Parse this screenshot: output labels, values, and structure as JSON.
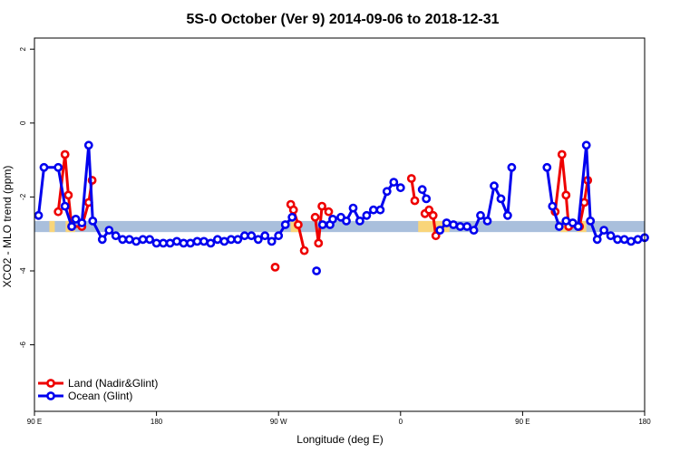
{
  "chart_data": {
    "type": "line",
    "title": "5S-0 October (Ver 9)   2014-09-06 to 2018-12-31",
    "xlabel": "Longitude (deg E)",
    "ylabel": "XCO2 - MLO trend (ppm)",
    "xlim": [
      90,
      540
    ],
    "ylim": [
      -7.8,
      2.3
    ],
    "x_ticks": [
      {
        "value": 90,
        "label": "90 E"
      },
      {
        "value": 180,
        "label": "180"
      },
      {
        "value": 270,
        "label": "90 W"
      },
      {
        "value": 360,
        "label": "0"
      },
      {
        "value": 450,
        "label": "90 E"
      },
      {
        "value": 540,
        "label": "180"
      }
    ],
    "y_ticks": [
      {
        "value": 2,
        "label": "2"
      },
      {
        "value": 0,
        "label": "0"
      },
      {
        "value": -2,
        "label": "-2"
      },
      {
        "value": -4,
        "label": "-4"
      },
      {
        "value": -6,
        "label": "-6"
      }
    ],
    "grid": false,
    "legend_position": "bottom-left",
    "band": {
      "y_low": -2.95,
      "y_high": -2.65,
      "base_color": "#a9bfdc",
      "land_color": "#f9d57a",
      "land_segments": [
        [
          101,
          105
        ],
        [
          113,
          120
        ],
        [
          279,
          286
        ],
        [
          373,
          396
        ],
        [
          478,
          483
        ],
        [
          490,
          497
        ]
      ]
    },
    "series": [
      {
        "name": "Land (Nadir&Glint)",
        "color": "#ee0000",
        "segments": [
          [
            [
              107.5,
              -2.4
            ],
            [
              112.5,
              -0.85
            ],
            [
              115,
              -1.95
            ],
            [
              117.5,
              -2.8
            ],
            [
              125,
              -2.8
            ],
            [
              130,
              -2.15
            ],
            [
              132.5,
              -1.55
            ]
          ],
          [
            [
              267.5,
              -3.9
            ]
          ],
          [
            [
              279,
              -2.2
            ],
            [
              281,
              -2.35
            ],
            [
              284.5,
              -2.75
            ],
            [
              289,
              -3.45
            ]
          ],
          [
            [
              297,
              -2.55
            ],
            [
              299.5,
              -3.25
            ],
            [
              302,
              -2.25
            ],
            [
              307,
              -2.4
            ]
          ],
          [
            [
              368,
              -1.5
            ],
            [
              370.5,
              -2.1
            ]
          ],
          [
            [
              378,
              -2.45
            ],
            [
              381,
              -2.35
            ],
            [
              384,
              -2.5
            ],
            [
              386,
              -3.05
            ]
          ],
          [
            [
              474,
              -2.4
            ],
            [
              479,
              -0.85
            ],
            [
              482,
              -1.95
            ],
            [
              484,
              -2.8
            ],
            [
              492,
              -2.8
            ],
            [
              495.5,
              -2.15
            ],
            [
              498,
              -1.55
            ]
          ]
        ]
      },
      {
        "name": "Ocean (Glint)",
        "color": "#0000ee",
        "segments": [
          [
            [
              93,
              -2.5
            ],
            [
              97,
              -1.2
            ],
            [
              107.5,
              -1.2
            ],
            [
              112.5,
              -2.25
            ],
            [
              117.5,
              -2.8
            ],
            [
              120.5,
              -2.6
            ],
            [
              125,
              -2.7
            ],
            [
              130,
              -0.6
            ],
            [
              133,
              -2.65
            ],
            [
              140,
              -3.15
            ],
            [
              145,
              -2.9
            ],
            [
              150,
              -3.05
            ],
            [
              155,
              -3.15
            ],
            [
              160,
              -3.15
            ],
            [
              165,
              -3.2
            ],
            [
              170,
              -3.15
            ],
            [
              175,
              -3.15
            ],
            [
              180,
              -3.25
            ],
            [
              185,
              -3.25
            ],
            [
              190,
              -3.25
            ],
            [
              195,
              -3.2
            ],
            [
              200,
              -3.25
            ],
            [
              205,
              -3.25
            ],
            [
              210,
              -3.2
            ],
            [
              215,
              -3.2
            ],
            [
              220,
              -3.25
            ],
            [
              225,
              -3.15
            ],
            [
              230,
              -3.2
            ],
            [
              235,
              -3.15
            ],
            [
              240,
              -3.15
            ],
            [
              245,
              -3.05
            ],
            [
              250,
              -3.05
            ],
            [
              255,
              -3.15
            ],
            [
              260,
              -3.05
            ],
            [
              265,
              -3.2
            ],
            [
              270,
              -3.05
            ],
            [
              275,
              -2.75
            ],
            [
              280,
              -2.55
            ]
          ],
          [
            [
              298,
              -4
            ]
          ],
          [
            [
              302.5,
              -2.75
            ],
            [
              308,
              -2.75
            ],
            [
              310,
              -2.6
            ],
            [
              316,
              -2.55
            ],
            [
              320,
              -2.65
            ],
            [
              325,
              -2.3
            ],
            [
              330,
              -2.65
            ],
            [
              335,
              -2.5
            ],
            [
              340,
              -2.35
            ],
            [
              345,
              -2.35
            ],
            [
              350,
              -1.85
            ],
            [
              355,
              -1.6
            ],
            [
              360,
              -1.75
            ]
          ],
          [
            [
              376,
              -1.8
            ],
            [
              379,
              -2.05
            ]
          ],
          [
            [
              389,
              -2.9
            ],
            [
              394,
              -2.7
            ],
            [
              399,
              -2.75
            ],
            [
              404,
              -2.8
            ],
            [
              409,
              -2.8
            ],
            [
              414,
              -2.9
            ],
            [
              419,
              -2.5
            ],
            [
              424,
              -2.65
            ],
            [
              429,
              -1.7
            ],
            [
              434,
              -2.05
            ],
            [
              439,
              -2.5
            ],
            [
              442,
              -1.2
            ]
          ],
          [
            [
              468,
              -1.2
            ],
            [
              472,
              -2.25
            ],
            [
              477,
              -2.8
            ],
            [
              482,
              -2.65
            ],
            [
              487,
              -2.7
            ],
            [
              491,
              -2.8
            ],
            [
              497,
              -0.6
            ],
            [
              500,
              -2.65
            ],
            [
              505,
              -3.15
            ],
            [
              510,
              -2.9
            ],
            [
              515,
              -3.05
            ],
            [
              520,
              -3.15
            ],
            [
              525,
              -3.15
            ],
            [
              530,
              -3.2
            ],
            [
              535,
              -3.15
            ],
            [
              540,
              -3.1
            ]
          ]
        ]
      }
    ]
  }
}
